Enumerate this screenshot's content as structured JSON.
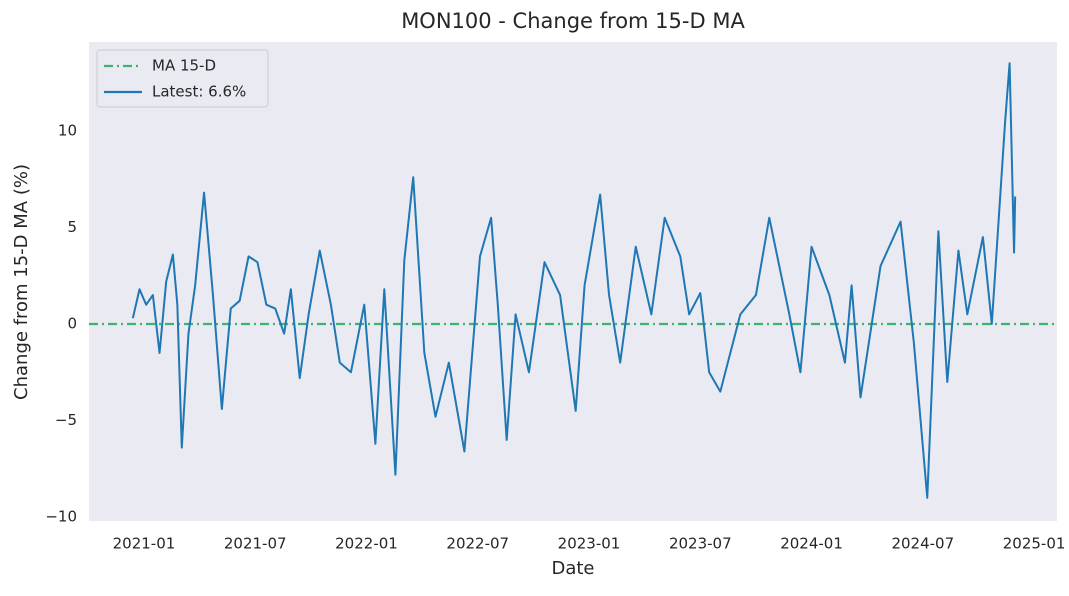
{
  "chart_data": {
    "type": "line",
    "title": "MON100 - Change from 15-D MA",
    "xlabel": "Date",
    "ylabel": "Change from 15-D MA (%)",
    "xlim": [
      2020.753,
      2025.103
    ],
    "ylim": [
      -10.2,
      14.6
    ],
    "xticks": [
      {
        "value": 2021.0,
        "label": "2021-01"
      },
      {
        "value": 2021.5,
        "label": "2021-07"
      },
      {
        "value": 2022.0,
        "label": "2022-01"
      },
      {
        "value": 2022.5,
        "label": "2022-07"
      },
      {
        "value": 2023.0,
        "label": "2023-01"
      },
      {
        "value": 2023.5,
        "label": "2023-07"
      },
      {
        "value": 2024.0,
        "label": "2024-01"
      },
      {
        "value": 2024.5,
        "label": "2024-07"
      },
      {
        "value": 2025.0,
        "label": "2025-01"
      }
    ],
    "yticks": [
      {
        "value": -10,
        "label": "−10"
      },
      {
        "value": -5,
        "label": "−5"
      },
      0,
      5,
      10
    ],
    "grid": false,
    "legend": "upper left",
    "hline": {
      "name": "MA 15-D",
      "value": 0,
      "color": "#3cb371"
    },
    "series": [
      {
        "name": "Latest: 6.6%",
        "color": "#1f77b4",
        "x": [
          2020.95,
          2020.98,
          2021.01,
          2021.04,
          2021.07,
          2021.1,
          2021.13,
          2021.15,
          2021.17,
          2021.2,
          2021.23,
          2021.27,
          2021.31,
          2021.35,
          2021.39,
          2021.43,
          2021.47,
          2021.51,
          2021.55,
          2021.59,
          2021.63,
          2021.66,
          2021.7,
          2021.74,
          2021.79,
          2021.84,
          2021.88,
          2021.93,
          2021.99,
          2022.04,
          2022.08,
          2022.13,
          2022.17,
          2022.21,
          2022.26,
          2022.31,
          2022.37,
          2022.44,
          2022.51,
          2022.56,
          2022.59,
          2022.63,
          2022.67,
          2022.73,
          2022.8,
          2022.87,
          2022.94,
          2022.98,
          2023.05,
          2023.09,
          2023.14,
          2023.21,
          2023.28,
          2023.34,
          2023.41,
          2023.45,
          2023.5,
          2023.54,
          2023.59,
          2023.68,
          2023.75,
          2023.81,
          2023.9,
          2023.95,
          2024.0,
          2024.08,
          2024.15,
          2024.18,
          2024.22,
          2024.31,
          2024.4,
          2024.46,
          2024.52,
          2024.57,
          2024.61,
          2024.66,
          2024.7,
          2024.77,
          2024.81,
          2024.87,
          2024.89,
          2024.91,
          2024.915
        ],
        "values": [
          0.3,
          1.8,
          1.0,
          1.5,
          -1.5,
          2.2,
          3.6,
          1.0,
          -6.4,
          -0.5,
          2.0,
          6.8,
          1.5,
          -4.4,
          0.8,
          1.2,
          3.5,
          3.2,
          1.0,
          0.8,
          -0.5,
          1.8,
          -2.8,
          0.5,
          3.8,
          1.0,
          -2.0,
          -2.5,
          1.0,
          -6.2,
          1.8,
          -7.8,
          3.3,
          7.6,
          -1.5,
          -4.8,
          -2.0,
          -6.6,
          3.5,
          5.5,
          1.0,
          -6.0,
          0.5,
          -2.5,
          3.2,
          1.5,
          -4.5,
          2.0,
          6.7,
          1.5,
          -2.0,
          4.0,
          0.5,
          5.5,
          3.5,
          0.5,
          1.6,
          -2.5,
          -3.5,
          0.5,
          1.5,
          5.5,
          0.5,
          -2.5,
          4.0,
          1.5,
          -2.0,
          2.0,
          -3.8,
          3.0,
          5.3,
          -1.0,
          -9.0,
          4.8,
          -3.0,
          3.8,
          0.5,
          4.5,
          0.0,
          10.5,
          13.5,
          3.7,
          6.6
        ]
      }
    ]
  }
}
